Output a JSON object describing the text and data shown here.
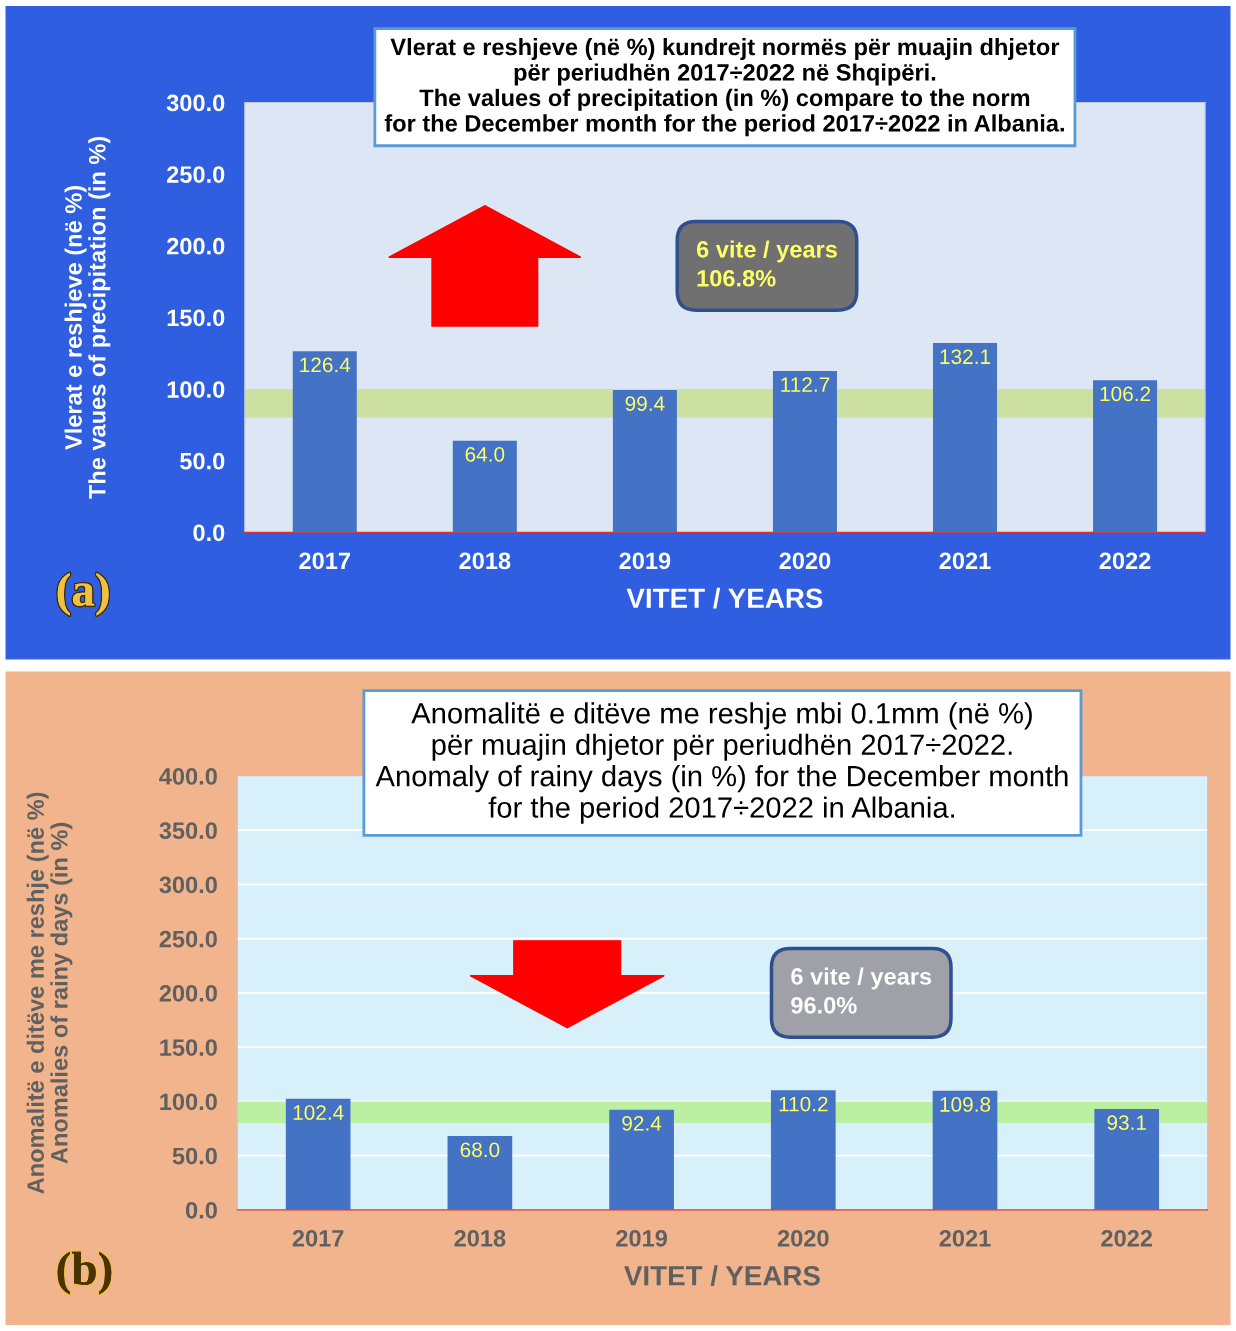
{
  "chart_data": [
    {
      "type": "bar",
      "title": "Vlerat e reshjeve (në %) kundrejt normës për muajin dhjetor\npër periudhën 2017÷2022 në Shqipëri.\nThe values of precipitation (in %) compare to the norm\nfor the December month for the period 2017÷2022 in Albania.",
      "ylabel": "Vlerat e reshjeve (në %)\nThe vaues of precipitation (in %)",
      "xlabel": "VITET / YEARS",
      "categories": [
        "2017",
        "2018",
        "2019",
        "2020",
        "2021",
        "2022"
      ],
      "values": [
        126.4,
        64.0,
        99.4,
        112.7,
        132.1,
        106.2
      ],
      "value_labels": [
        "126.4",
        "64.0",
        "99.4",
        "112.7",
        "132.1",
        "106.2"
      ],
      "color": "#4472c4",
      "ylim": [
        0,
        300
      ],
      "yticks": [
        {
          "value": 0,
          "label": "0.0"
        },
        {
          "value": 50,
          "label": "50.0"
        },
        {
          "value": 100,
          "label": "100.0"
        },
        {
          "value": 150,
          "label": "150.0"
        },
        {
          "value": 200,
          "label": "200.0"
        },
        {
          "value": 250,
          "label": "250.0"
        },
        {
          "value": 300,
          "label": "300.0"
        }
      ],
      "grid": false,
      "bands": [
        {
          "axis": "y",
          "from": 80,
          "to": 100,
          "color": "#c8e08c"
        }
      ],
      "annotations": [
        "6 vite / years\n106.8%",
        "(a)"
      ]
    },
    {
      "type": "bar",
      "title": "Anomalitë e ditëve me reshje mbi 0.1mm (në %)\npër muajin dhjetor për periudhën 2017÷2022.\nAnomaly of rainy days (in %) for the December month\nfor the period 2017÷2022 in Albania.",
      "ylabel": "Anomalitë e ditëve me reshje (në %)\nAnomalies of rainy days (in %)",
      "xlabel": "VITET / YEARS",
      "categories": [
        "2017",
        "2018",
        "2019",
        "2020",
        "2021",
        "2022"
      ],
      "values": [
        102.4,
        68.0,
        92.4,
        110.2,
        109.8,
        93.1
      ],
      "value_labels": [
        "102.4",
        "68.0",
        "92.4",
        "110.2",
        "109.8",
        "93.1"
      ],
      "color": "#4472c4",
      "ylim": [
        0,
        400
      ],
      "yticks": [
        {
          "value": 0,
          "label": "0.0"
        },
        {
          "value": 50,
          "label": "50.0"
        },
        {
          "value": 100,
          "label": "100.0"
        },
        {
          "value": 150,
          "label": "150.0"
        },
        {
          "value": 200,
          "label": "200.0"
        },
        {
          "value": 250,
          "label": "250.0"
        },
        {
          "value": 300,
          "label": "300.0"
        },
        {
          "value": 350,
          "label": "350.0"
        },
        {
          "value": 400,
          "label": "400.0"
        }
      ],
      "grid": "y",
      "bands": [
        {
          "axis": "y",
          "from": 80,
          "to": 100,
          "color": "#b4f08c"
        }
      ],
      "annotations": [
        "6 vite / years\n96.0%",
        "(b)"
      ]
    }
  ]
}
